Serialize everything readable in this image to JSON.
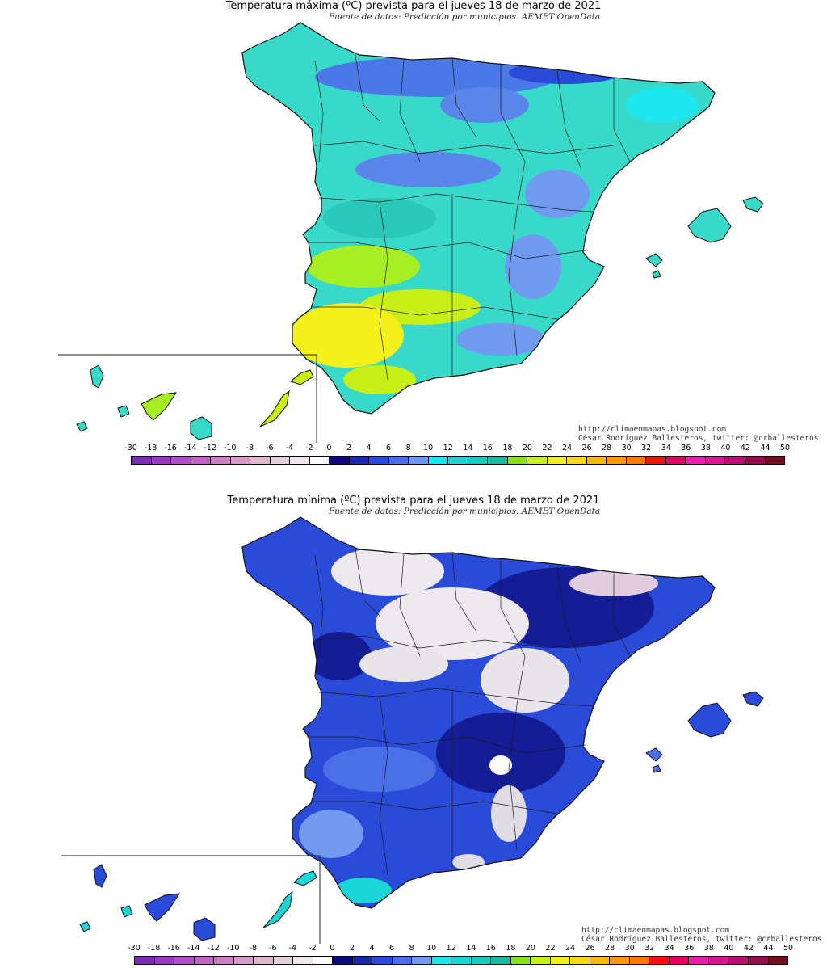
{
  "maps": [
    {
      "title": "Temperatura máxima (ºC) prevista para el jueves 18 de marzo de 2021",
      "subtitle": "Fuente de datos: Predicción por municipios. AEMET OpenData",
      "credit_url": "http://climaenmapas.blogspot.com",
      "credit_author": "César Rodríguez Ballesteros, twitter: @crballesteros"
    },
    {
      "title": "Temperatura mínima (ºC) prevista para el jueves 18 de marzo de 2021",
      "subtitle": "Fuente de datos: Predicción por municipios. AEMET OpenData",
      "credit_url": "http://climaenmapas.blogspot.com",
      "credit_author": "César Rodríguez Ballesteros, twitter: @crballesteros"
    }
  ],
  "legend": {
    "labels": [
      "-30",
      "-18",
      "-16",
      "-14",
      "-12",
      "-10",
      "-8",
      "-6",
      "-4",
      "-2",
      "0",
      "2",
      "4",
      "6",
      "8",
      "10",
      "12",
      "14",
      "16",
      "18",
      "20",
      "22",
      "24",
      "26",
      "28",
      "30",
      "32",
      "34",
      "36",
      "38",
      "40",
      "42",
      "44",
      "50"
    ],
    "colors": [
      "#7a2cb3",
      "#9b38c0",
      "#b44cc8",
      "#c363c7",
      "#cd7fc6",
      "#d69cc7",
      "#deb7cd",
      "#e6cfdc",
      "#efe6ee",
      "#fafafa",
      "#0a0a7a",
      "#1a2aa8",
      "#2a4ad8",
      "#4a70e8",
      "#6f9af0",
      "#1de6ee",
      "#1ad6d6",
      "#20c8c0",
      "#20b8a0",
      "#8ae020",
      "#c8f018",
      "#f0f020",
      "#f8d818",
      "#f8b810",
      "#f89810",
      "#f87808",
      "#f81010",
      "#e80060",
      "#e820b0",
      "#d81890",
      "#b81070",
      "#901050",
      "#701020"
    ]
  },
  "colors": {
    "max_base": "#39d9c9",
    "max_cold": "#3f74e0",
    "max_warm": "#a8ee25",
    "max_hot": "#f4f01c",
    "min_base": "#2a4ad8",
    "min_dark": "#141c96",
    "min_cold_white": "#eee8ef",
    "min_light": "#6f9af0",
    "min_cyan": "#1ad6d6"
  }
}
